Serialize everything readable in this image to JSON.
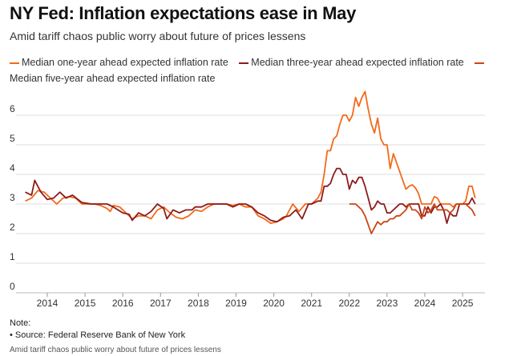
{
  "title": "NY Fed: Inflation expectations ease in May",
  "subtitle": "Amid tariff chaos public worry about future of prices lessens",
  "note_label": "Note:",
  "source": "• Source: Federal Reserve Bank of New York",
  "footer": "Amid tariff chaos public worry about future of prices lessens",
  "chart_data": {
    "type": "line",
    "title": "NY Fed: Inflation expectations ease in May",
    "xlabel": "",
    "ylabel": "",
    "ylim": [
      0,
      6.8
    ],
    "yticks": [
      "0",
      "1",
      "2",
      "3",
      "4",
      "5",
      "6"
    ],
    "xticks": [
      "2014",
      "2015",
      "2016",
      "2017",
      "2018",
      "2019",
      "2020",
      "2021",
      "2022",
      "2023",
      "2024",
      "2025"
    ],
    "grid": true,
    "legend": "top",
    "series": [
      {
        "name": "Median one-year ahead expected inflation rate",
        "color": "#f26a1b",
        "points": [
          [
            "2013-06",
            3.1
          ],
          [
            "2013-08",
            3.2
          ],
          [
            "2013-10",
            3.45
          ],
          [
            "2013-12",
            3.4
          ],
          [
            "2014-02",
            3.2
          ],
          [
            "2014-04",
            3.0
          ],
          [
            "2014-06",
            3.2
          ],
          [
            "2014-08",
            3.25
          ],
          [
            "2014-10",
            3.2
          ],
          [
            "2014-12",
            3.0
          ],
          [
            "2015-02",
            3.0
          ],
          [
            "2015-04",
            3.0
          ],
          [
            "2015-06",
            2.95
          ],
          [
            "2015-08",
            2.85
          ],
          [
            "2015-09",
            2.75
          ],
          [
            "2015-10",
            2.95
          ],
          [
            "2015-12",
            2.9
          ],
          [
            "2016-02",
            2.7
          ],
          [
            "2016-04",
            2.5
          ],
          [
            "2016-06",
            2.6
          ],
          [
            "2016-08",
            2.6
          ],
          [
            "2016-10",
            2.5
          ],
          [
            "2016-12",
            2.8
          ],
          [
            "2017-02",
            2.9
          ],
          [
            "2017-04",
            2.7
          ],
          [
            "2017-06",
            2.55
          ],
          [
            "2017-08",
            2.5
          ],
          [
            "2017-10",
            2.6
          ],
          [
            "2017-12",
            2.8
          ],
          [
            "2018-02",
            2.75
          ],
          [
            "2018-04",
            2.9
          ],
          [
            "2018-06",
            3.0
          ],
          [
            "2018-08",
            3.0
          ],
          [
            "2018-10",
            3.0
          ],
          [
            "2018-12",
            2.95
          ],
          [
            "2019-02",
            3.0
          ],
          [
            "2019-04",
            2.9
          ],
          [
            "2019-06",
            2.9
          ],
          [
            "2019-08",
            2.6
          ],
          [
            "2019-10",
            2.5
          ],
          [
            "2019-12",
            2.35
          ],
          [
            "2020-02",
            2.4
          ],
          [
            "2020-04",
            2.5
          ],
          [
            "2020-05",
            2.6
          ],
          [
            "2020-07",
            3.0
          ],
          [
            "2020-09",
            2.75
          ],
          [
            "2020-11",
            3.0
          ],
          [
            "2021-01",
            3.0
          ],
          [
            "2021-03",
            3.2
          ],
          [
            "2021-04",
            3.4
          ],
          [
            "2021-05",
            4.0
          ],
          [
            "2021-06",
            4.8
          ],
          [
            "2021-07",
            4.8
          ],
          [
            "2021-08",
            5.2
          ],
          [
            "2021-09",
            5.3
          ],
          [
            "2021-10",
            5.7
          ],
          [
            "2021-11",
            6.0
          ],
          [
            "2021-12",
            6.0
          ],
          [
            "2022-01",
            5.8
          ],
          [
            "2022-02",
            6.0
          ],
          [
            "2022-03",
            6.6
          ],
          [
            "2022-04",
            6.3
          ],
          [
            "2022-05",
            6.6
          ],
          [
            "2022-06",
            6.8
          ],
          [
            "2022-07",
            6.2
          ],
          [
            "2022-08",
            5.7
          ],
          [
            "2022-09",
            5.4
          ],
          [
            "2022-10",
            5.9
          ],
          [
            "2022-11",
            5.2
          ],
          [
            "2022-12",
            5.0
          ],
          [
            "2023-01",
            5.0
          ],
          [
            "2023-02",
            4.2
          ],
          [
            "2023-03",
            4.7
          ],
          [
            "2023-04",
            4.4
          ],
          [
            "2023-05",
            4.1
          ],
          [
            "2023-06",
            3.8
          ],
          [
            "2023-07",
            3.5
          ],
          [
            "2023-08",
            3.6
          ],
          [
            "2023-09",
            3.65
          ],
          [
            "2023-10",
            3.55
          ],
          [
            "2023-11",
            3.35
          ],
          [
            "2023-12",
            3.0
          ],
          [
            "2024-01",
            3.0
          ],
          [
            "2024-02",
            3.0
          ],
          [
            "2024-03",
            3.0
          ],
          [
            "2024-04",
            3.25
          ],
          [
            "2024-05",
            3.2
          ],
          [
            "2024-06",
            3.0
          ],
          [
            "2024-07",
            3.0
          ],
          [
            "2024-08",
            3.0
          ],
          [
            "2024-09",
            3.0
          ],
          [
            "2024-10",
            2.9
          ],
          [
            "2024-11",
            3.0
          ],
          [
            "2024-12",
            3.0
          ],
          [
            "2025-01",
            3.0
          ],
          [
            "2025-02",
            3.1
          ],
          [
            "2025-03",
            3.6
          ],
          [
            "2025-04",
            3.6
          ],
          [
            "2025-05",
            3.2
          ]
        ]
      },
      {
        "name": "Median three-year ahead expected inflation rate",
        "color": "#8e1b1b",
        "points": [
          [
            "2013-06",
            3.4
          ],
          [
            "2013-08",
            3.3
          ],
          [
            "2013-09",
            3.8
          ],
          [
            "2013-10",
            3.6
          ],
          [
            "2013-11",
            3.4
          ],
          [
            "2014-01",
            3.15
          ],
          [
            "2014-03",
            3.2
          ],
          [
            "2014-05",
            3.4
          ],
          [
            "2014-07",
            3.2
          ],
          [
            "2014-09",
            3.3
          ],
          [
            "2014-12",
            3.05
          ],
          [
            "2015-03",
            3.0
          ],
          [
            "2015-06",
            3.0
          ],
          [
            "2015-08",
            3.0
          ],
          [
            "2015-10",
            2.9
          ],
          [
            "2016-01",
            2.7
          ],
          [
            "2016-03",
            2.65
          ],
          [
            "2016-04",
            2.45
          ],
          [
            "2016-06",
            2.7
          ],
          [
            "2016-08",
            2.6
          ],
          [
            "2016-10",
            2.75
          ],
          [
            "2016-12",
            3.0
          ],
          [
            "2017-02",
            2.85
          ],
          [
            "2017-03",
            2.5
          ],
          [
            "2017-05",
            2.8
          ],
          [
            "2017-07",
            2.7
          ],
          [
            "2017-09",
            2.8
          ],
          [
            "2017-11",
            2.8
          ],
          [
            "2017-12",
            2.9
          ],
          [
            "2018-02",
            2.9
          ],
          [
            "2018-04",
            3.0
          ],
          [
            "2018-08",
            3.0
          ],
          [
            "2018-10",
            3.0
          ],
          [
            "2018-12",
            2.9
          ],
          [
            "2019-02",
            3.0
          ],
          [
            "2019-04",
            3.0
          ],
          [
            "2019-06",
            2.9
          ],
          [
            "2019-08",
            2.7
          ],
          [
            "2019-10",
            2.6
          ],
          [
            "2019-12",
            2.45
          ],
          [
            "2020-02",
            2.4
          ],
          [
            "2020-04",
            2.55
          ],
          [
            "2020-06",
            2.6
          ],
          [
            "2020-08",
            2.8
          ],
          [
            "2020-10",
            2.5
          ],
          [
            "2020-12",
            3.0
          ],
          [
            "2021-01",
            3.0
          ],
          [
            "2021-03",
            3.1
          ],
          [
            "2021-04",
            3.1
          ],
          [
            "2021-05",
            3.6
          ],
          [
            "2021-06",
            3.6
          ],
          [
            "2021-07",
            3.7
          ],
          [
            "2021-08",
            4.0
          ],
          [
            "2021-09",
            4.2
          ],
          [
            "2021-10",
            4.2
          ],
          [
            "2021-11",
            4.0
          ],
          [
            "2021-12",
            4.0
          ],
          [
            "2022-01",
            3.5
          ],
          [
            "2022-02",
            3.8
          ],
          [
            "2022-03",
            3.7
          ],
          [
            "2022-04",
            3.9
          ],
          [
            "2022-05",
            3.9
          ],
          [
            "2022-06",
            3.6
          ],
          [
            "2022-07",
            3.2
          ],
          [
            "2022-08",
            2.8
          ],
          [
            "2022-09",
            2.9
          ],
          [
            "2022-10",
            3.1
          ],
          [
            "2022-11",
            3.0
          ],
          [
            "2022-12",
            3.0
          ],
          [
            "2023-01",
            2.7
          ],
          [
            "2023-02",
            2.7
          ],
          [
            "2023-03",
            2.8
          ],
          [
            "2023-04",
            2.9
          ],
          [
            "2023-05",
            3.0
          ],
          [
            "2023-06",
            3.0
          ],
          [
            "2023-07",
            2.9
          ],
          [
            "2023-08",
            3.0
          ],
          [
            "2023-09",
            3.0
          ],
          [
            "2023-10",
            3.0
          ],
          [
            "2023-11",
            3.0
          ],
          [
            "2023-12",
            2.6
          ],
          [
            "2024-01",
            2.6
          ],
          [
            "2024-02",
            2.9
          ],
          [
            "2024-03",
            2.7
          ],
          [
            "2024-04",
            2.9
          ],
          [
            "2024-05",
            2.9
          ],
          [
            "2024-06",
            3.0
          ],
          [
            "2024-07",
            2.8
          ],
          [
            "2024-08",
            2.35
          ],
          [
            "2024-09",
            2.7
          ],
          [
            "2024-10",
            2.6
          ],
          [
            "2024-11",
            2.6
          ],
          [
            "2024-12",
            3.0
          ],
          [
            "2025-01",
            3.0
          ],
          [
            "2025-02",
            3.0
          ],
          [
            "2025-03",
            3.0
          ],
          [
            "2025-04",
            3.2
          ],
          [
            "2025-05",
            3.0
          ]
        ]
      },
      {
        "name": "Median five-year ahead expected inflation rate",
        "color": "#cc4516",
        "points": [
          [
            "2022-01",
            3.0
          ],
          [
            "2022-02",
            3.0
          ],
          [
            "2022-03",
            3.0
          ],
          [
            "2022-04",
            2.9
          ],
          [
            "2022-05",
            2.8
          ],
          [
            "2022-06",
            2.6
          ],
          [
            "2022-07",
            2.3
          ],
          [
            "2022-08",
            2.0
          ],
          [
            "2022-09",
            2.2
          ],
          [
            "2022-10",
            2.4
          ],
          [
            "2022-11",
            2.3
          ],
          [
            "2022-12",
            2.4
          ],
          [
            "2023-01",
            2.4
          ],
          [
            "2023-02",
            2.5
          ],
          [
            "2023-03",
            2.5
          ],
          [
            "2023-04",
            2.6
          ],
          [
            "2023-05",
            2.6
          ],
          [
            "2023-06",
            2.7
          ],
          [
            "2023-07",
            2.8
          ],
          [
            "2023-08",
            3.0
          ],
          [
            "2023-09",
            2.8
          ],
          [
            "2023-10",
            2.8
          ],
          [
            "2023-11",
            2.7
          ],
          [
            "2023-12",
            2.5
          ],
          [
            "2024-01",
            2.9
          ],
          [
            "2024-02",
            2.7
          ],
          [
            "2024-03",
            2.8
          ],
          [
            "2024-04",
            3.0
          ],
          [
            "2024-05",
            2.8
          ],
          [
            "2024-06",
            2.8
          ],
          [
            "2024-07",
            2.8
          ],
          [
            "2024-08",
            2.8
          ],
          [
            "2024-09",
            2.7
          ],
          [
            "2024-10",
            2.8
          ],
          [
            "2024-11",
            3.0
          ],
          [
            "2024-12",
            3.0
          ],
          [
            "2025-01",
            3.0
          ],
          [
            "2025-02",
            3.0
          ],
          [
            "2025-03",
            2.9
          ],
          [
            "2025-04",
            2.8
          ],
          [
            "2025-05",
            2.6
          ]
        ]
      }
    ]
  }
}
